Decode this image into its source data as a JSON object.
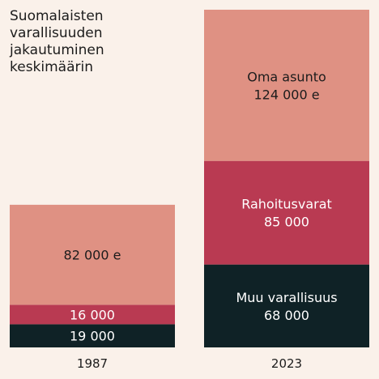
{
  "chart_data": {
    "type": "bar",
    "stacked": true,
    "title": "Suomalaisten\nvarallisuuden\njakautuminen\nkeskimäärin",
    "categories": [
      "1987",
      "2023"
    ],
    "series": [
      {
        "values": [
          19000,
          68000
        ],
        "labels": [
          "19 000",
          "Muu varallisuus\n68 000"
        ],
        "color": "#0f2226",
        "text_color": "#ffffff"
      },
      {
        "values": [
          16000,
          85000
        ],
        "labels": [
          "16 000",
          "Rahoitusvarat\n85 000"
        ],
        "color": "#b93a52",
        "text_color": "#ffffff"
      },
      {
        "values": [
          82000,
          124000
        ],
        "labels": [
          "82 000 e",
          "Oma asunto\n124 000 e"
        ],
        "color": "#df9183",
        "text_color": "#1c1c1c"
      }
    ],
    "ylim": [
      0,
      277000
    ],
    "grid": false,
    "legend": "none"
  }
}
